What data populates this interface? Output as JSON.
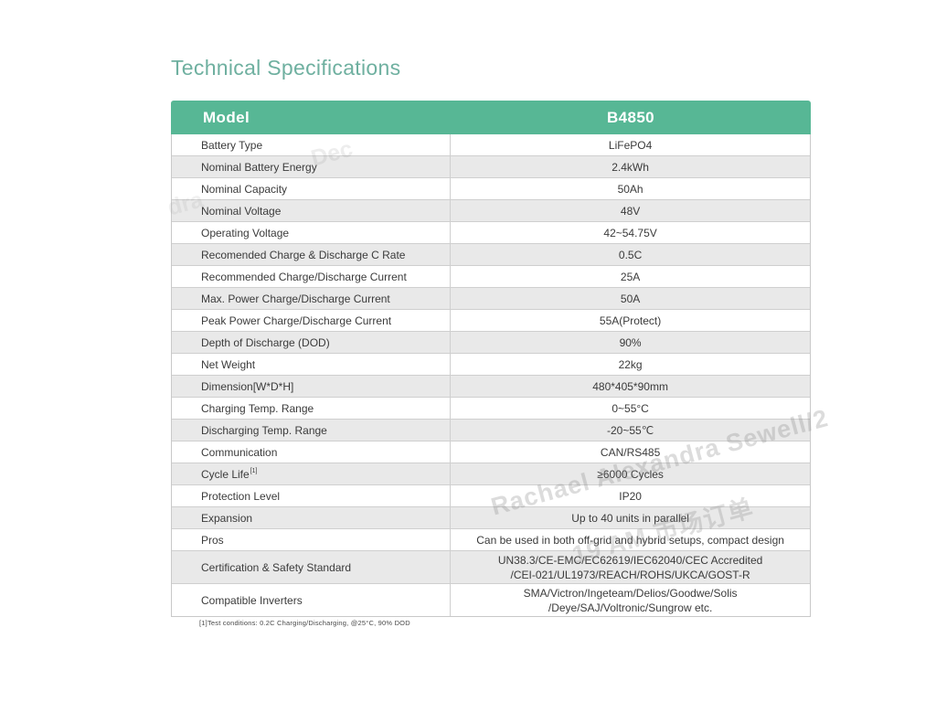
{
  "colors": {
    "header_green": "#57B795",
    "title_green": "#6FB0A0",
    "row_alt_gray": "#E9E9E9",
    "border_gray": "#C9C9C9",
    "text_dark": "#3B3B3B"
  },
  "page": {
    "title": "Technical Specifications",
    "footnote": "[1]Test conditions: 0.2C Charging/Discharging, @25°C, 90% DOD"
  },
  "table": {
    "header": {
      "model_label": "Model",
      "model_value": "B4850"
    },
    "rows": [
      {
        "label": "Battery Type",
        "value": "LiFePO4"
      },
      {
        "label": "Nominal Battery Energy",
        "value": "2.4kWh"
      },
      {
        "label": "Nominal Capacity",
        "value": "50Ah"
      },
      {
        "label": "Nominal Voltage",
        "value": "48V"
      },
      {
        "label": "Operating Voltage",
        "value": "42~54.75V"
      },
      {
        "label": "Recomended Charge & Discharge C Rate",
        "value": "0.5C"
      },
      {
        "label": "Recommended Charge/Discharge Current",
        "value": "25A"
      },
      {
        "label": "Max. Power Charge/Discharge Current",
        "value": "50A"
      },
      {
        "label": "Peak Power Charge/Discharge Current",
        "value": "55A(Protect)"
      },
      {
        "label": "Depth of Discharge (DOD)",
        "value": "90%"
      },
      {
        "label": "Net Weight",
        "value": "22kg"
      },
      {
        "label": "Dimension[W*D*H]",
        "value": "480*405*90mm"
      },
      {
        "label": "Charging Temp. Range",
        "value": "0~55°C"
      },
      {
        "label": "Discharging Temp. Range",
        "value": "-20~55℃"
      },
      {
        "label": "Communication",
        "value": "CAN/RS485"
      },
      {
        "label": "Cycle Life",
        "sup": "[1]",
        "value": "≥6000 Cycles"
      },
      {
        "label": "Protection Level",
        "value": "IP20"
      },
      {
        "label": "Expansion",
        "value": "Up to 40 units in parallel"
      },
      {
        "label": "Pros",
        "value": "Can be used in both off-grid and hybrid setups, compact design"
      },
      {
        "label": "Certification & Safety Standard",
        "value": "UN38.3/CE-EMC/EC62619/IEC62040/CEC Accredited",
        "value2": "/CEI-021/UL1973/REACH/ROHS/UKCA/GOST-R"
      },
      {
        "label": "Compatible Inverters",
        "value": "SMA/Victron/Ingeteam/Delios/Goodwe/Solis",
        "value2": "/Deye/SAJ/Voltronic/Sungrow etc."
      }
    ]
  },
  "watermarks": {
    "fragment_top": "Dec",
    "line1": "Rachael Alexandra Sewell/2",
    "line2": "19 AM 市场订单",
    "fragment_left": "dra"
  }
}
